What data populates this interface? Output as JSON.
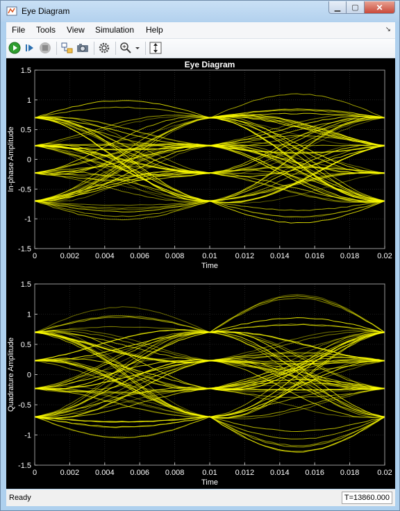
{
  "window": {
    "title": "Eye Diagram"
  },
  "menu": [
    "File",
    "Tools",
    "View",
    "Simulation",
    "Help"
  ],
  "toolbar": {
    "buttons": [
      "run-icon",
      "step-forward-icon",
      "stop-icon",
      "highlight-block-icon",
      "snapshot-icon",
      "settings-gear-icon",
      "zoom-in-icon",
      "zoom-dropdown-icon",
      "scale-axes-icon"
    ]
  },
  "colors": {
    "trace": "#ffff00",
    "plot_bg": "#000000",
    "axes_text": "#ffffff",
    "grid": "#3a3a3a"
  },
  "chart_data": [
    {
      "type": "line",
      "title": "Eye Diagram",
      "xlabel": "Time",
      "ylabel": "In-phase Amplitude",
      "xlim": [
        0,
        0.02
      ],
      "ylim": [
        -1.5,
        1.5
      ],
      "xticks": [
        "0",
        "0.002",
        "0.004",
        "0.006",
        "0.008",
        "0.01",
        "0.012",
        "0.014",
        "0.016",
        "0.018",
        "0.02"
      ],
      "yticks": [
        "1.5",
        "1",
        "0.5",
        "0",
        "-0.5",
        "-1",
        "-1.5"
      ],
      "grid": true,
      "symbol_levels": [
        0.7,
        0.23,
        -0.23,
        -0.7
      ],
      "symbol_times": [
        0,
        0.01,
        0.02
      ],
      "eye_peak": 1.05
    },
    {
      "type": "line",
      "title": "",
      "xlabel": "Time",
      "ylabel": "Quadrature Amplitude",
      "xlim": [
        0,
        0.02
      ],
      "ylim": [
        -1.5,
        1.5
      ],
      "xticks": [
        "0",
        "0.002",
        "0.004",
        "0.006",
        "0.008",
        "0.01",
        "0.012",
        "0.014",
        "0.016",
        "0.018",
        "0.02"
      ],
      "yticks": [
        "1.5",
        "1",
        "0.5",
        "0",
        "-0.5",
        "-1",
        "-1.5"
      ],
      "grid": true,
      "symbol_levels": [
        0.7,
        0.23,
        -0.23,
        -0.7
      ],
      "symbol_times": [
        0,
        0.01,
        0.02
      ],
      "eye_peak": 1.25
    }
  ],
  "status": {
    "text": "Ready",
    "time": "T=13860.000"
  }
}
